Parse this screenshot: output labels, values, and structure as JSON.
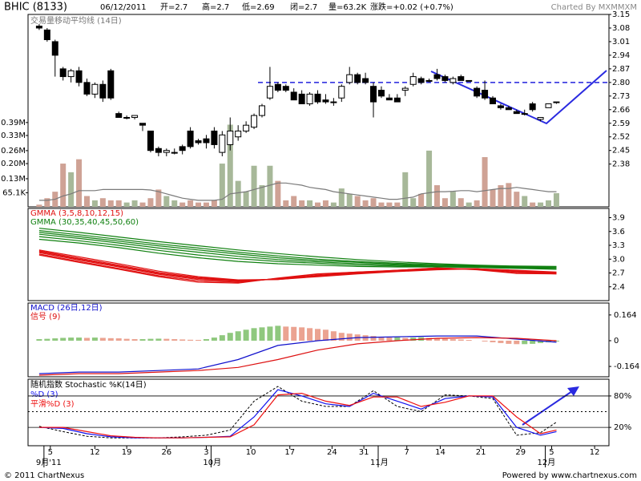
{
  "chart_data": [
    {
      "type": "candlestick",
      "title": "BHIC (8133)",
      "info": [
        "06/12/2011",
        "开=2.7",
        "高=2.7",
        "低=2.69",
        "闭=2.7",
        "量=63.2K",
        "涨跌=+0.02 (+0.7%)"
      ],
      "credit": "Charted By MXMMXM",
      "open": [
        3.09,
        3.07,
        3.01,
        2.87,
        2.83,
        2.86,
        2.8,
        2.74,
        2.79,
        2.86,
        2.64,
        2.62,
        2.62,
        2.59,
        2.55,
        2.46,
        2.44,
        2.44,
        2.47,
        2.55,
        2.5,
        2.51,
        2.55,
        2.44,
        2.48,
        2.52,
        2.55,
        2.57,
        2.63,
        2.72,
        2.79,
        2.78,
        2.75,
        2.74,
        2.69,
        2.74,
        2.71,
        2.7,
        2.72,
        2.8,
        2.84,
        2.82,
        2.78,
        2.76,
        2.72,
        2.72,
        2.76,
        2.79,
        2.82,
        2.81,
        2.84,
        2.83,
        2.8,
        2.83,
        2.81,
        2.77,
        2.76,
        2.72,
        2.68,
        2.67,
        2.65,
        2.64,
        2.69,
        2.61,
        2.67,
        2.7
      ],
      "high": [
        3.1,
        3.08,
        3.02,
        2.88,
        2.87,
        2.88,
        2.82,
        2.8,
        2.81,
        2.87,
        2.65,
        2.63,
        2.63,
        2.59,
        2.55,
        2.47,
        2.46,
        2.46,
        2.48,
        2.57,
        2.51,
        2.53,
        2.57,
        2.55,
        2.62,
        2.58,
        2.6,
        2.64,
        2.69,
        2.88,
        2.8,
        2.79,
        2.77,
        2.76,
        2.75,
        2.76,
        2.74,
        2.72,
        2.79,
        2.88,
        2.85,
        2.85,
        2.8,
        2.78,
        2.74,
        2.74,
        2.78,
        2.85,
        2.83,
        2.82,
        2.87,
        2.84,
        2.83,
        2.84,
        2.81,
        2.78,
        2.81,
        2.73,
        2.69,
        2.68,
        2.66,
        2.66,
        2.7,
        2.62,
        2.69,
        2.7
      ],
      "low": [
        3.07,
        3.01,
        2.83,
        2.81,
        2.8,
        2.78,
        2.73,
        2.72,
        2.7,
        2.71,
        2.62,
        2.61,
        2.61,
        2.55,
        2.44,
        2.42,
        2.42,
        2.43,
        2.43,
        2.46,
        2.48,
        2.46,
        2.46,
        2.42,
        2.45,
        2.5,
        2.54,
        2.56,
        2.62,
        2.71,
        2.75,
        2.75,
        2.71,
        2.69,
        2.68,
        2.69,
        2.69,
        2.68,
        2.7,
        2.79,
        2.79,
        2.79,
        2.62,
        2.72,
        2.71,
        2.7,
        2.73,
        2.78,
        2.79,
        2.8,
        2.81,
        2.8,
        2.79,
        2.81,
        2.81,
        2.72,
        2.71,
        2.69,
        2.66,
        2.66,
        2.64,
        2.63,
        2.65,
        2.6,
        2.67,
        2.69
      ],
      "close": [
        3.08,
        3.02,
        2.94,
        2.83,
        2.86,
        2.8,
        2.74,
        2.79,
        2.72,
        2.72,
        2.62,
        2.62,
        2.63,
        2.58,
        2.45,
        2.44,
        2.45,
        2.44,
        2.45,
        2.47,
        2.49,
        2.49,
        2.48,
        2.53,
        2.55,
        2.55,
        2.58,
        2.63,
        2.68,
        2.78,
        2.76,
        2.76,
        2.71,
        2.69,
        2.74,
        2.7,
        2.7,
        2.7,
        2.78,
        2.84,
        2.8,
        2.8,
        2.7,
        2.73,
        2.71,
        2.7,
        2.77,
        2.83,
        2.8,
        2.81,
        2.82,
        2.81,
        2.82,
        2.81,
        2.81,
        2.73,
        2.72,
        2.69,
        2.67,
        2.66,
        2.64,
        2.64,
        2.66,
        2.62,
        2.69,
        2.7
      ],
      "up_color": "#ffffff",
      "down_color": "#000000",
      "ylim": [
        2.16,
        3.15
      ],
      "yticks": [
        3.15,
        3.08,
        3.01,
        2.94,
        2.87,
        {
          "value": 2.8,
          "label": "2.80"
        },
        2.73,
        2.66,
        2.59,
        2.52,
        2.45,
        2.38
      ],
      "hline": 2.8,
      "hline_color": "#2020dd",
      "volume": {
        "label": "交易量移动平均线 (14日)",
        "values": [
          0.01,
          0.04,
          0.07,
          0.2,
          0.16,
          0.22,
          0.05,
          0.03,
          0.04,
          0.03,
          0.03,
          0.02,
          0.03,
          0.02,
          0.04,
          0.08,
          0.05,
          0.03,
          0.02,
          0.03,
          0.02,
          0.02,
          0.03,
          0.2,
          0.38,
          0.12,
          0.07,
          0.19,
          0.1,
          0.19,
          0.12,
          0.03,
          0.05,
          0.03,
          0.03,
          0.02,
          0.03,
          0.02,
          0.085,
          0.06,
          0.05,
          0.03,
          0.04,
          0.02,
          0.02,
          0.02,
          0.16,
          0.04,
          0.06,
          0.26,
          0.1,
          0.04,
          0.07,
          0.04,
          0.02,
          0.03,
          0.23,
          0.08,
          0.1,
          0.11,
          0.07,
          0.05,
          0.02,
          0.02,
          0.03,
          0.0632
        ],
        "ma": [
          0.03,
          0.03,
          0.035,
          0.05,
          0.06,
          0.075,
          0.075,
          0.075,
          0.08,
          0.08,
          0.08,
          0.08,
          0.08,
          0.08,
          0.078,
          0.07,
          0.06,
          0.05,
          0.04,
          0.035,
          0.03,
          0.03,
          0.03,
          0.035,
          0.06,
          0.065,
          0.07,
          0.08,
          0.09,
          0.1,
          0.11,
          0.11,
          0.105,
          0.1,
          0.09,
          0.085,
          0.08,
          0.07,
          0.065,
          0.06,
          0.055,
          0.05,
          0.045,
          0.04,
          0.035,
          0.035,
          0.04,
          0.045,
          0.06,
          0.065,
          0.07,
          0.07,
          0.072,
          0.075,
          0.075,
          0.07,
          0.075,
          0.08,
          0.085,
          0.085,
          0.09,
          0.085,
          0.08,
          0.075,
          0.07,
          0.07
        ],
        "up_color": "#a7b899",
        "down_color": "#cfa295",
        "ma_color": "#7a7a7a",
        "ylim": [
          0,
          0.89
        ],
        "yticks": [
          {
            "value": 0.39,
            "label": "0.39M"
          },
          {
            "value": 0.33,
            "label": "0.33M"
          },
          {
            "value": 0.26,
            "label": "0.26M"
          },
          {
            "value": 0.2,
            "label": "0.20M"
          },
          {
            "value": 0.13,
            "label": "0.13M"
          },
          {
            "value": 0.0651,
            "label": "65.1K"
          }
        ]
      }
    },
    {
      "type": "gmma",
      "x": [
        0,
        5,
        10,
        15,
        20,
        25,
        30,
        35,
        40,
        45,
        50,
        55,
        60,
        65
      ],
      "ylim": [
        2.1,
        4.1
      ],
      "yticks": [
        3.9,
        3.6,
        3.3,
        {
          "value": 3,
          "label": "3.0"
        },
        2.7,
        2.4
      ],
      "groups": [
        {
          "name": "GMMA (3,5,8,10,12,15)",
          "color": "#e01010",
          "series": [
            [
              3.09,
              2.93,
              2.78,
              2.62,
              2.5,
              2.48,
              2.59,
              2.68,
              2.72,
              2.75,
              2.81,
              2.77,
              2.69,
              2.68
            ],
            [
              3.11,
              2.95,
              2.8,
              2.64,
              2.53,
              2.5,
              2.58,
              2.67,
              2.72,
              2.76,
              2.81,
              2.78,
              2.71,
              2.68
            ],
            [
              3.14,
              2.98,
              2.83,
              2.67,
              2.56,
              2.52,
              2.57,
              2.65,
              2.71,
              2.76,
              2.8,
              2.79,
              2.73,
              2.69
            ],
            [
              3.16,
              3.0,
              2.85,
              2.69,
              2.58,
              2.53,
              2.57,
              2.64,
              2.7,
              2.75,
              2.79,
              2.79,
              2.74,
              2.7
            ],
            [
              3.18,
              3.02,
              2.87,
              2.71,
              2.6,
              2.54,
              2.56,
              2.63,
              2.69,
              2.74,
              2.78,
              2.79,
              2.75,
              2.71
            ],
            [
              3.2,
              3.05,
              2.9,
              2.74,
              2.62,
              2.55,
              2.56,
              2.62,
              2.68,
              2.73,
              2.77,
              2.79,
              2.76,
              2.72
            ]
          ]
        },
        {
          "name": "GMMA (30,35,40,45,50,60)",
          "color": "#108010",
          "series": [
            [
              3.43,
              3.35,
              3.25,
              3.13,
              3.03,
              2.95,
              2.9,
              2.87,
              2.84,
              2.83,
              2.83,
              2.82,
              2.8,
              2.78
            ],
            [
              3.49,
              3.4,
              3.3,
              3.19,
              3.09,
              3.01,
              2.95,
              2.91,
              2.87,
              2.85,
              2.84,
              2.83,
              2.81,
              2.79
            ],
            [
              3.54,
              3.45,
              3.35,
              3.24,
              3.15,
              3.06,
              2.99,
              2.94,
              2.9,
              2.87,
              2.85,
              2.84,
              2.82,
              2.81
            ],
            [
              3.58,
              3.49,
              3.39,
              3.29,
              3.2,
              3.11,
              3.03,
              2.97,
              2.93,
              2.89,
              2.86,
              2.85,
              2.83,
              2.82
            ],
            [
              3.62,
              3.53,
              3.43,
              3.33,
              3.24,
              3.15,
              3.07,
              3.0,
              2.95,
              2.91,
              2.88,
              2.86,
              2.84,
              2.83
            ],
            [
              3.67,
              3.58,
              3.48,
              3.38,
              3.29,
              3.2,
              3.12,
              3.05,
              2.99,
              2.94,
              2.9,
              2.87,
              2.85,
              2.84
            ]
          ]
        }
      ]
    },
    {
      "type": "macd",
      "histogram": [
        0.01,
        0.012,
        0.015,
        0.018,
        0.02,
        0.02,
        0.018,
        0.02,
        0.018,
        0.016,
        0.015,
        0.012,
        0.01,
        0.01,
        0.012,
        0.013,
        0.012,
        0.01,
        0.008,
        0.006,
        0.005,
        0.01,
        0.02,
        0.035,
        0.05,
        0.06,
        0.07,
        0.08,
        0.085,
        0.09,
        0.095,
        0.09,
        0.088,
        0.085,
        0.08,
        0.075,
        0.07,
        0.06,
        0.05,
        0.045,
        0.04,
        0.035,
        0.03,
        0.025,
        0.02,
        0.022,
        0.018,
        0.02,
        0.022,
        0.018,
        0.015,
        0.012,
        0.01,
        0.008,
        0.005,
        0.0,
        -0.005,
        -0.01,
        -0.015,
        -0.02,
        -0.022,
        -0.022,
        -0.02,
        -0.015,
        -0.01,
        -0.005
      ],
      "rise_color": "#8fc87e",
      "fall_color": "#eba391",
      "x": [
        0,
        5,
        10,
        15,
        20,
        25,
        30,
        35,
        40,
        45,
        50,
        55,
        60,
        65
      ],
      "series": [
        {
          "name": "MACD (26日,12日)",
          "color": "#1010cc",
          "values": [
            -0.21,
            -0.2,
            -0.2,
            -0.19,
            -0.18,
            -0.12,
            -0.03,
            0.0,
            0.02,
            0.025,
            0.03,
            0.03,
            0.01,
            -0.01
          ]
        },
        {
          "name": "信号 (9)",
          "color": "#dd1010",
          "values": [
            -0.22,
            -0.21,
            -0.21,
            -0.2,
            -0.19,
            -0.17,
            -0.12,
            -0.06,
            -0.02,
            0.0,
            0.015,
            0.02,
            0.015,
            0.0
          ]
        }
      ],
      "ylim": [
        -0.23,
        0.24
      ],
      "yticks": [
        0.164,
        0,
        -0.164
      ]
    },
    {
      "type": "stochastic",
      "title": "随机指数 Stochastic %K(14日)",
      "x": [
        0,
        3,
        6,
        9,
        12,
        15,
        18,
        21,
        24,
        27,
        30,
        33,
        36,
        39,
        42,
        45,
        48,
        51,
        54,
        57,
        60,
        63,
        65
      ],
      "series": [
        {
          "color": "#000000",
          "dash": true,
          "values": [
            22,
            12,
            3,
            0,
            0,
            0,
            2,
            5,
            15,
            70,
            98,
            70,
            60,
            60,
            90,
            60,
            50,
            82,
            80,
            75,
            5,
            10,
            30
          ]
        },
        {
          "name": "%D (3)",
          "color": "#1010ee",
          "values": [
            20,
            18,
            8,
            2,
            0,
            0,
            0,
            1,
            3,
            40,
            92,
            80,
            65,
            60,
            85,
            70,
            55,
            75,
            80,
            78,
            20,
            5,
            12
          ]
        },
        {
          "name": "平滑%D (3)",
          "color": "#ee1010",
          "values": [
            20,
            20,
            12,
            4,
            1,
            0,
            0,
            1,
            2,
            25,
            82,
            85,
            70,
            62,
            78,
            78,
            60,
            68,
            80,
            80,
            40,
            8,
            15
          ]
        }
      ],
      "ylim": [
        -15,
        112
      ],
      "yticks": [
        {
          "value": 80,
          "label": "80%"
        },
        {
          "value": 20,
          "label": "20%"
        }
      ],
      "midline": 50,
      "xlim": [
        -1.4,
        71.6
      ],
      "xticks": [
        {
          "value": 1.4,
          "label": "5"
        },
        {
          "value": 7,
          "label": "12"
        },
        {
          "value": 11,
          "label": "19"
        },
        {
          "value": 16,
          "label": "26"
        },
        {
          "value": 21,
          "label": "3"
        },
        {
          "value": 26.6,
          "label": "10"
        },
        {
          "value": 31.5,
          "label": "17"
        },
        {
          "value": 36.8,
          "label": "24"
        },
        {
          "value": 40.8,
          "label": "31"
        },
        {
          "value": 46.2,
          "label": "7"
        },
        {
          "value": 50.4,
          "label": "14"
        },
        {
          "value": 55.5,
          "label": "21"
        },
        {
          "value": 60.5,
          "label": "29"
        },
        {
          "value": 64.4,
          "label": "5"
        },
        {
          "value": 69.8,
          "label": "12"
        }
      ],
      "months": [
        {
          "value": 0.6,
          "label": "9月'11"
        },
        {
          "value": 21.6,
          "label": "10月"
        },
        {
          "value": 42.6,
          "label": "11月"
        },
        {
          "value": 63.6,
          "label": "12月"
        }
      ]
    }
  ],
  "footer": {
    "left": "© 2011 ChartNexus",
    "right": "Powered by www.chartnexus.com"
  }
}
